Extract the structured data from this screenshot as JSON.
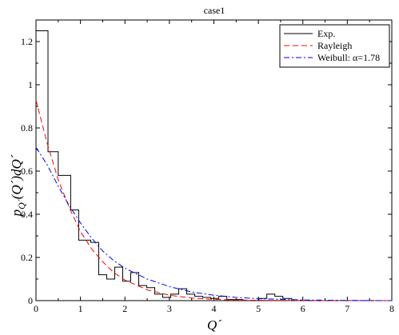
{
  "chart_data": {
    "type": "line",
    "title": "case1",
    "xlabel": "Q´",
    "ylabel": "p_Q´(Q´)dQ´",
    "xlim": [
      0,
      8
    ],
    "ylim": [
      0,
      1.3
    ],
    "xticks": [
      "0",
      "1",
      "2",
      "3",
      "4",
      "5",
      "6",
      "7",
      "8"
    ],
    "yticks": [
      "0",
      "0.2",
      "0.4",
      "0.6",
      "0.8",
      "1",
      "1.2"
    ],
    "grid": false,
    "legend_position": "top-right",
    "series": [
      {
        "name": "Exp.",
        "style": "histogram",
        "color": "#000000",
        "bin_edges": [
          0,
          0.27,
          0.5,
          0.78,
          0.96,
          1.23,
          1.41,
          1.59,
          1.77,
          1.95,
          2.13,
          2.31,
          2.49,
          2.67,
          2.85,
          3.03,
          3.21,
          3.39,
          3.57,
          3.75,
          3.93,
          4.11,
          4.29,
          4.47,
          4.65,
          4.83,
          5.01,
          5.19,
          5.37,
          5.55,
          5.75
        ],
        "values": [
          1.25,
          0.69,
          0.58,
          0.42,
          0.28,
          0.27,
          0.12,
          0.1,
          0.155,
          0.09,
          0.13,
          0.07,
          0.06,
          0.03,
          0.015,
          0.03,
          0.055,
          0.03,
          0.02,
          0.015,
          0.01,
          0.02,
          0.005,
          0.005,
          0.0,
          0.0,
          0.01,
          0.03,
          0.02,
          0.01
        ]
      },
      {
        "name": "Rayleigh",
        "style": "dashed",
        "color": "#ff0000",
        "x": [
          0,
          0.25,
          0.5,
          0.75,
          1.0,
          1.25,
          1.5,
          1.75,
          2.0,
          2.5,
          3.0,
          3.5,
          4.0,
          4.5,
          5.0,
          6.0,
          7.0,
          8.0
        ],
        "y": [
          0.93,
          0.73,
          0.56,
          0.43,
          0.32,
          0.24,
          0.18,
          0.13,
          0.095,
          0.05,
          0.025,
          0.012,
          0.006,
          0.003,
          0.0015,
          0.0003,
          0.0,
          0.0
        ]
      },
      {
        "name": "Weibull: α=1.78",
        "style": "dashdot",
        "color": "#0000ff",
        "x": [
          0,
          0.25,
          0.5,
          0.75,
          1.0,
          1.25,
          1.5,
          1.75,
          2.0,
          2.5,
          3.0,
          3.5,
          4.0,
          4.5,
          5.0,
          6.0,
          7.0,
          8.0
        ],
        "y": [
          0.71,
          0.63,
          0.53,
          0.44,
          0.36,
          0.29,
          0.23,
          0.185,
          0.15,
          0.1,
          0.065,
          0.04,
          0.025,
          0.015,
          0.009,
          0.003,
          0.001,
          0.0
        ]
      }
    ]
  }
}
